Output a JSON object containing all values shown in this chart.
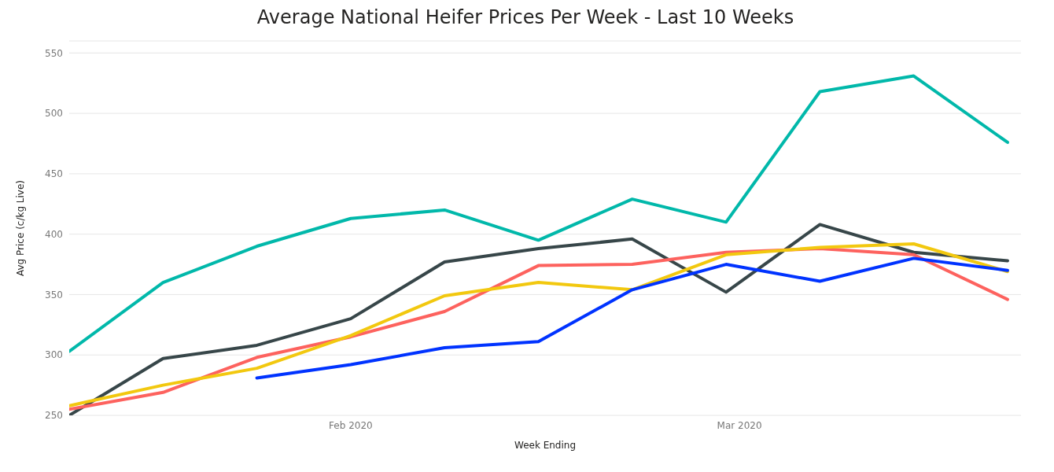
{
  "chart_data": {
    "type": "line",
    "title": "Average National Heifer Prices Per Week - Last 10 Weeks",
    "xlabel": "Week Ending",
    "ylabel": "Avg Price (c/kg Live)",
    "x": [
      "2020-01-11",
      "2020-01-18",
      "2020-01-25",
      "2020-02-01",
      "2020-02-08",
      "2020-02-15",
      "2020-02-22",
      "2020-02-29",
      "2020-03-07",
      "2020-03-14",
      "2020-03-21"
    ],
    "series": [
      {
        "color": "#01b8aa",
        "values": [
          303,
          360,
          390,
          413,
          420,
          395,
          429,
          410,
          518,
          531,
          476
        ]
      },
      {
        "color": "#374649",
        "values": [
          250,
          297,
          308,
          330,
          377,
          388,
          396,
          352,
          408,
          385,
          378
        ]
      },
      {
        "color": "#fd625e",
        "values": [
          255,
          269,
          298,
          315,
          336,
          374,
          375,
          385,
          388,
          383,
          346
        ]
      },
      {
        "color": "#f2c80f",
        "values": [
          258,
          275,
          289,
          316,
          349,
          360,
          354,
          383,
          389,
          392,
          369
        ]
      },
      {
        "color": "#0033ff",
        "values": [
          null,
          null,
          281,
          292,
          306,
          311,
          354,
          375,
          361,
          380,
          370
        ]
      }
    ],
    "xlim": [
      "2020-01-11",
      "2020-03-22"
    ],
    "xticks": [
      {
        "value": "2020-02-01",
        "label": "Feb 2020"
      },
      {
        "value": "2020-03-01",
        "label": "Mar 2020"
      }
    ],
    "ylim": [
      250,
      560
    ],
    "yticks": [
      250,
      300,
      350,
      400,
      450,
      500,
      550
    ],
    "grid": "y",
    "marker": "none",
    "line_style": "solid"
  }
}
